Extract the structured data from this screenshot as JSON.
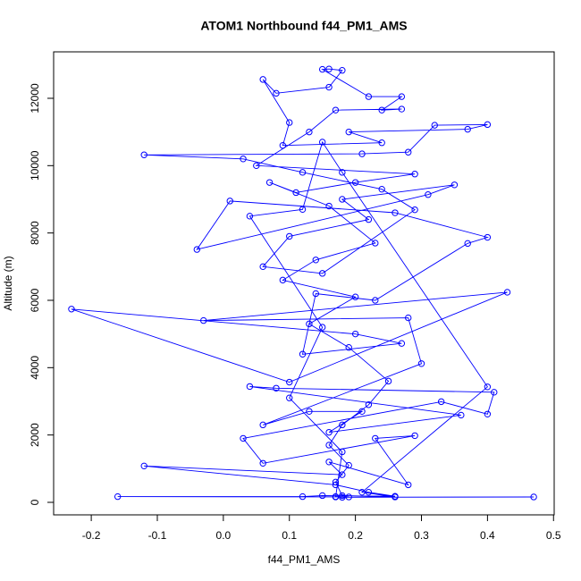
{
  "chart_data": {
    "type": "line",
    "markers": "open-circle",
    "title": "ATOM1 Northbound f44_PM1_AMS",
    "x_label": "f44_PM1_AMS",
    "y_label": "Altitude (m)",
    "color": "#0000ff",
    "grid": false,
    "xlim": [
      -0.257,
      0.501
    ],
    "ylim": [
      -372,
      13380
    ],
    "xticks": [
      -0.2,
      -0.1,
      {
        "value": 0,
        "label": "0.0"
      },
      0.1,
      0.2,
      0.3,
      0.4,
      0.5
    ],
    "yticks": [
      0,
      2000,
      4000,
      6000,
      8000,
      10000,
      12000
    ],
    "x": [
      0.47,
      0.18,
      0.17,
      0.19,
      -0.16,
      0.12,
      0.15,
      0.26,
      0.22,
      0.17,
      -0.12,
      0.18,
      0.16,
      0.28,
      0.23,
      0.29,
      0.06,
      0.03,
      0.33,
      0.4,
      0.41,
      0.08,
      0.04,
      0.36,
      0.16,
      0.21,
      0.13,
      0.06,
      0.3,
      0.28,
      -0.03,
      0.43,
      0.1,
      -0.23,
      0.2,
      0.27,
      0.12,
      0.14,
      0.23,
      0.37,
      0.4,
      0.26,
      0.01,
      -0.04,
      0.31,
      0.35,
      0.18,
      0.22,
      0.1,
      0.06,
      0.15,
      0.29,
      0.24,
      0.12,
      0.03,
      -0.12,
      0.21,
      0.28,
      0.32,
      0.4,
      0.37,
      0.19,
      0.24,
      0.09,
      0.1,
      0.06,
      0.08,
      0.16,
      0.18,
      0.16,
      0.15,
      0.22,
      0.27,
      0.24,
      0.27,
      0.17,
      0.13,
      0.05,
      0.29,
      0.2,
      0.11,
      0.07,
      0.16,
      0.23,
      0.14,
      0.09,
      0.2,
      0.13,
      0.19,
      0.25,
      0.22,
      0.18,
      0.16,
      0.19,
      0.17,
      0.18,
      0.26,
      0.21,
      0.4,
      0.18,
      0.15,
      0.12,
      0.04,
      0.15,
      0.1,
      0.18,
      0.17
    ],
    "values": [
      160,
      150,
      170,
      160,
      170,
      170,
      200,
      180,
      300,
      520,
      1080,
      820,
      1200,
      520,
      1900,
      1980,
      1160,
      1900,
      2990,
      2620,
      3270,
      3390,
      3440,
      2590,
      2080,
      2700,
      2700,
      2300,
      4120,
      5480,
      5400,
      6240,
      3570,
      5740,
      5000,
      4720,
      4400,
      6200,
      6000,
      7690,
      7870,
      8600,
      8950,
      7510,
      9140,
      9430,
      9000,
      8400,
      7900,
      7000,
      6800,
      8690,
      9300,
      9800,
      10200,
      10320,
      10350,
      10400,
      11200,
      11220,
      11080,
      11000,
      10680,
      10600,
      11280,
      12560,
      12150,
      12330,
      12830,
      12870,
      12860,
      12050,
      12050,
      11650,
      11680,
      11650,
      11000,
      10000,
      9750,
      9500,
      9200,
      9500,
      8800,
      7700,
      7200,
      6600,
      6100,
      5300,
      4600,
      3600,
      2900,
      2300,
      1700,
      1100,
      600,
      200,
      160,
      300,
      3430,
      9800,
      10700,
      8700,
      8500,
      5200,
      3100,
      1500,
      160
    ]
  }
}
